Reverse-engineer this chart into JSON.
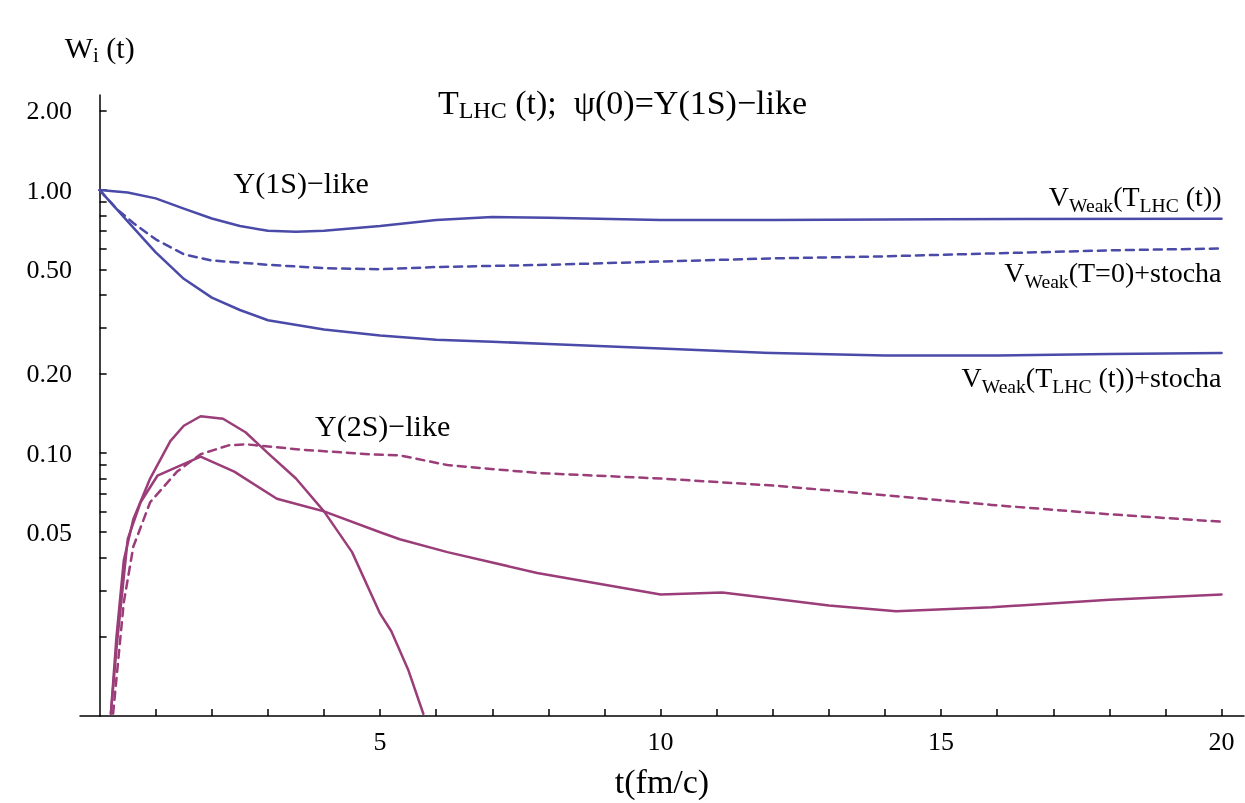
{
  "chart_data": {
    "type": "line",
    "title": "T$_{LHC}$ (t);  ψ(0)=Υ(1S)−like",
    "xlabel": "t(fm/c)",
    "ylabel": "W$_{i}$ (t)",
    "log": "y",
    "marker": "none",
    "xlim": [
      -0.35,
      20.4
    ],
    "xticks": [
      {
        "value": 1,
        "label": null
      },
      {
        "value": 2,
        "label": null
      },
      {
        "value": 3,
        "label": null
      },
      {
        "value": 4,
        "label": null
      },
      5,
      {
        "value": 6,
        "label": null
      },
      {
        "value": 7,
        "label": null
      },
      {
        "value": 8,
        "label": null
      },
      {
        "value": 9,
        "label": null
      },
      10,
      {
        "value": 11,
        "label": null
      },
      {
        "value": 12,
        "label": null
      },
      {
        "value": 13,
        "label": null
      },
      {
        "value": 14,
        "label": null
      },
      15,
      {
        "value": 16,
        "label": null
      },
      {
        "value": 17,
        "label": null
      },
      {
        "value": 18,
        "label": null
      },
      {
        "value": 19,
        "label": null
      },
      20
    ],
    "ylim": [
      0.01,
      2.3
    ],
    "yticks": [
      {
        "value": 0.02,
        "label": null
      },
      {
        "value": 0.03,
        "label": null
      },
      {
        "value": 0.04,
        "label": null
      },
      {
        "value": 0.05,
        "label": "0.05"
      },
      {
        "value": 0.06,
        "label": null
      },
      {
        "value": 0.07,
        "label": null
      },
      {
        "value": 0.08,
        "label": null
      },
      {
        "value": 0.09,
        "label": null
      },
      {
        "value": 0.1,
        "label": "0.10"
      },
      {
        "value": 0.2,
        "label": "0.20"
      },
      {
        "value": 0.3,
        "label": null
      },
      {
        "value": 0.4,
        "label": null
      },
      {
        "value": 0.5,
        "label": "0.50"
      },
      {
        "value": 0.6,
        "label": null
      },
      {
        "value": 0.7,
        "label": null
      },
      {
        "value": 0.8,
        "label": null
      },
      {
        "value": 0.9,
        "label": null
      },
      {
        "value": 1,
        "label": "1.00"
      },
      {
        "value": 2,
        "label": "2.00"
      }
    ],
    "annotations": [
      "Υ(1S)−like",
      "Υ(2S)−like"
    ],
    "series": [
      {
        "name": "V$_{Weak}$(T$_{LHC}$ (t))",
        "color": "#4a4aa8",
        "line_style": "solid",
        "x": [
          0,
          0.5,
          1,
          1.5,
          2,
          2.5,
          3,
          3.5,
          4,
          5,
          6,
          7,
          8,
          10,
          12,
          15,
          20
        ],
        "values": [
          1.0,
          0.98,
          0.93,
          0.85,
          0.78,
          0.73,
          0.7,
          0.695,
          0.7,
          0.73,
          0.77,
          0.79,
          0.785,
          0.77,
          0.77,
          0.775,
          0.778
        ]
      },
      {
        "name": "V$_{Weak}$(T=0)+stocha",
        "color": "#4a4aa8",
        "line_style": "dashed",
        "x": [
          0,
          0.3,
          0.6,
          1,
          1.5,
          2,
          3,
          4,
          5,
          6,
          8,
          10,
          12,
          14,
          16,
          18,
          20
        ],
        "values": [
          1.0,
          0.85,
          0.75,
          0.65,
          0.57,
          0.54,
          0.52,
          0.505,
          0.5,
          0.51,
          0.52,
          0.535,
          0.55,
          0.56,
          0.575,
          0.59,
          0.6
        ]
      },
      {
        "name": "V$_{Weak}$(T$_{LHC}$ (t))+stocha",
        "color": "#4a4aa8",
        "line_style": "solid",
        "x": [
          0,
          0.5,
          1,
          1.5,
          2,
          2.5,
          3,
          4,
          5,
          6,
          7,
          8,
          9,
          10,
          12,
          14,
          16,
          18,
          20
        ],
        "values": [
          1.0,
          0.76,
          0.58,
          0.46,
          0.39,
          0.35,
          0.32,
          0.295,
          0.28,
          0.27,
          0.265,
          0.26,
          0.255,
          0.25,
          0.24,
          0.235,
          0.235,
          0.238,
          0.24
        ]
      },
      {
        "color": "#9a3d78",
        "line_style": "solid",
        "x": [
          0.2,
          0.3,
          0.43,
          0.6,
          0.9,
          1.26,
          1.5,
          1.8,
          2.2,
          2.6,
          3.0,
          3.5,
          4.0,
          4.5,
          5.0,
          5.2,
          5.5,
          5.77
        ],
        "values": [
          0.0102,
          0.02,
          0.039,
          0.056,
          0.08,
          0.111,
          0.127,
          0.138,
          0.135,
          0.12,
          0.1,
          0.08,
          0.06,
          0.042,
          0.0245,
          0.021,
          0.015,
          0.0102
        ]
      },
      {
        "color": "#9a3d78",
        "line_style": "dashed",
        "x": [
          0.24,
          0.43,
          0.6,
          0.9,
          1.38,
          1.8,
          2.3,
          2.6,
          3.6,
          4.8,
          5.35,
          6.2,
          7.8,
          10,
          12.1,
          14.2,
          15.9,
          18,
          20
        ],
        "values": [
          0.0102,
          0.027,
          0.044,
          0.065,
          0.085,
          0.099,
          0.107,
          0.108,
          0.103,
          0.099,
          0.098,
          0.09,
          0.084,
          0.08,
          0.075,
          0.0685,
          0.0635,
          0.0585,
          0.0548
        ]
      },
      {
        "color": "#9a3d78",
        "line_style": "solid",
        "x": [
          0.2,
          0.31,
          0.5,
          0.73,
          1.03,
          1.8,
          2.4,
          3.16,
          4.0,
          5.0,
          5.35,
          6.2,
          7.8,
          10,
          11.1,
          13,
          14.2,
          15.9,
          18,
          20
        ],
        "values": [
          0.0102,
          0.019,
          0.047,
          0.065,
          0.082,
          0.097,
          0.085,
          0.067,
          0.06,
          0.05,
          0.047,
          0.042,
          0.035,
          0.029,
          0.0295,
          0.0263,
          0.025,
          0.0259,
          0.0277,
          0.029
        ]
      }
    ]
  }
}
